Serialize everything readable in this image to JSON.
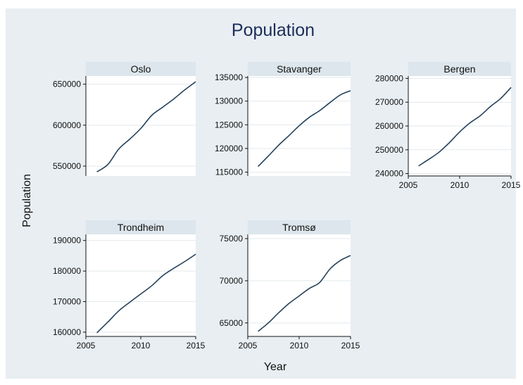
{
  "chart_data": {
    "type": "line",
    "title": "Population",
    "xlabel": "Year",
    "ylabel": "Population",
    "xlim": [
      2005,
      2015
    ],
    "xticks": [
      2005,
      2010,
      2015
    ],
    "grid": true,
    "panels": [
      {
        "name": "Oslo",
        "ylim": [
          538000,
          660000
        ],
        "yticks": [
          550000,
          600000,
          650000
        ],
        "x": [
          2006,
          2007,
          2008,
          2009,
          2010,
          2011,
          2012,
          2013,
          2014,
          2015
        ],
        "values": [
          543000,
          552000,
          571000,
          583000,
          596000,
          612000,
          622000,
          632000,
          643000,
          653000
        ]
      },
      {
        "name": "Stavanger",
        "ylim": [
          114200,
          135300
        ],
        "yticks": [
          115000,
          120000,
          125000,
          130000,
          135000
        ],
        "x": [
          2006,
          2007,
          2008,
          2009,
          2010,
          2011,
          2012,
          2013,
          2014,
          2015
        ],
        "values": [
          116200,
          118400,
          120700,
          122700,
          124800,
          126600,
          128000,
          129700,
          131300,
          132200
        ]
      },
      {
        "name": "Bergen",
        "ylim": [
          239000,
          281000
        ],
        "yticks": [
          240000,
          250000,
          260000,
          270000,
          280000
        ],
        "x": [
          2006,
          2007,
          2008,
          2009,
          2010,
          2011,
          2012,
          2013,
          2014,
          2015
        ],
        "values": [
          243200,
          246000,
          249000,
          253000,
          257500,
          261300,
          264300,
          268200,
          271600,
          276200
        ]
      },
      {
        "name": "Trondheim",
        "ylim": [
          158600,
          192000
        ],
        "yticks": [
          160000,
          170000,
          180000,
          190000
        ],
        "x": [
          2006,
          2007,
          2008,
          2009,
          2010,
          2011,
          2012,
          2013,
          2014,
          2015
        ],
        "values": [
          159800,
          163300,
          167000,
          169800,
          172500,
          175200,
          178500,
          180900,
          183100,
          185500
        ]
      },
      {
        "name": "Tromsø",
        "ylim": [
          63400,
          75500
        ],
        "yticks": [
          65000,
          70000,
          75000
        ],
        "x": [
          2006,
          2007,
          2008,
          2009,
          2010,
          2011,
          2012,
          2013,
          2014,
          2015
        ],
        "values": [
          64000,
          65000,
          66200,
          67300,
          68200,
          69100,
          69800,
          71400,
          72400,
          73000
        ]
      }
    ]
  },
  "colors": {
    "background": "#ffffff",
    "frame": "#e8eef2",
    "strip": "#dce6ec",
    "line": "#24415b",
    "title": "#1e2d5a",
    "grid": "#e3e9ee",
    "text": "#111111"
  }
}
